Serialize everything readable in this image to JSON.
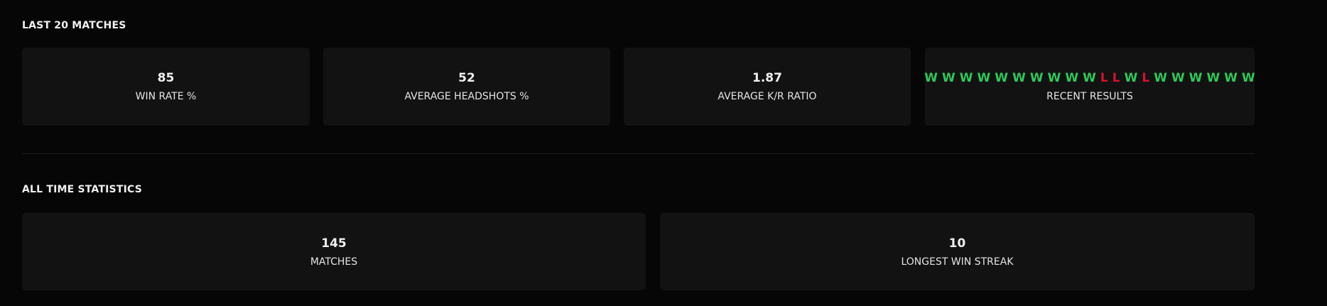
{
  "last20": {
    "title": "LAST 20 MATCHES",
    "stats": [
      {
        "value": "85",
        "label": "WIN RATE %"
      },
      {
        "value": "52",
        "label": "AVERAGE HEADSHOTS %"
      },
      {
        "value": "1.87",
        "label": "AVERAGE K/R RATIO"
      }
    ],
    "recent": {
      "label": "RECENT RESULTS",
      "results": [
        "W",
        "W",
        "W",
        "W",
        "W",
        "W",
        "W",
        "W",
        "W",
        "W",
        "L",
        "L",
        "W",
        "L",
        "W",
        "W",
        "W",
        "W",
        "W",
        "W"
      ]
    }
  },
  "alltime": {
    "title": "ALL TIME STATISTICS",
    "stats": [
      {
        "value": "145",
        "label": "MATCHES"
      },
      {
        "value": "10",
        "label": "LONGEST WIN STREAK"
      }
    ]
  },
  "colors": {
    "win": "#2ec95a",
    "loss": "#d8102e",
    "background": "#060606",
    "card": "#121212"
  }
}
